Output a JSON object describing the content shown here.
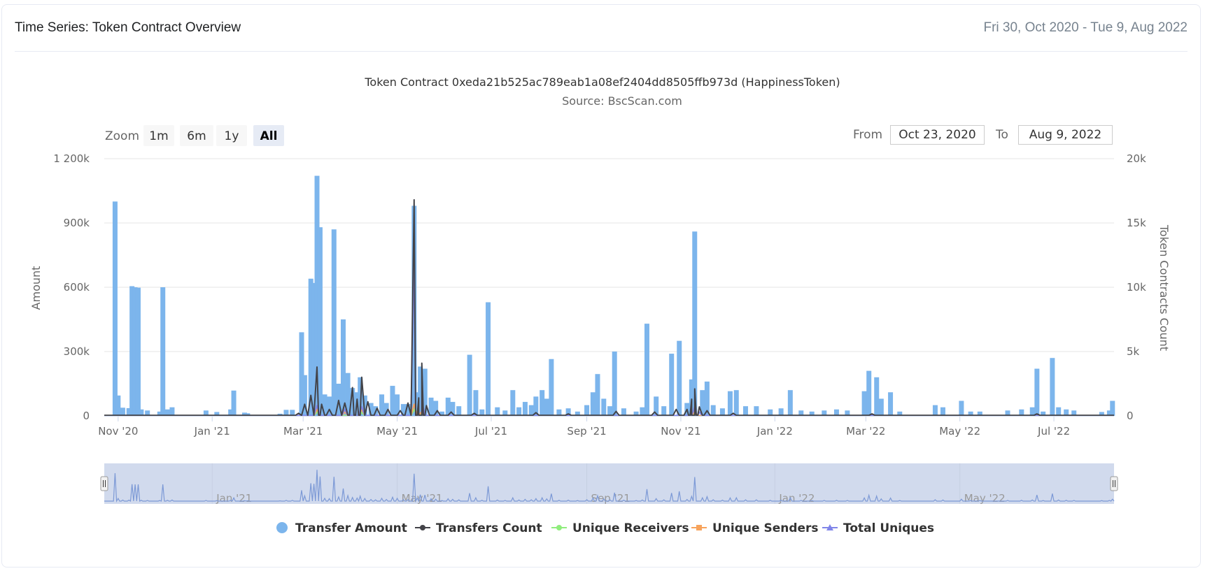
{
  "header": {
    "title": "Time Series: Token Contract Overview",
    "date_range": "Fri 30, Oct 2020 - Tue 9, Aug 2022"
  },
  "range_selector": {
    "zoom_label": "Zoom",
    "buttons": [
      "1m",
      "6m",
      "1y",
      "All"
    ],
    "active": "All",
    "from_label": "From",
    "from_value": "Oct 23, 2020",
    "to_label": "To",
    "to_value": "Aug 9, 2022"
  },
  "colors": {
    "transfer_amount": "#7cb5ec",
    "transfers_count": "#434348",
    "unique_receivers": "#90ed7d",
    "unique_senders": "#f7a35c",
    "total_uniques": "#8085e9",
    "navigator_mask": "#ccd6eb"
  },
  "chart_data": {
    "type": "bar",
    "title": "Token Contract 0xeda21b525ac789eab1a08ef2404dd8505ffb973d (HappinessToken)",
    "subtitle": "Source: BscScan.com",
    "x_range": [
      "2020-10-23",
      "2022-08-09"
    ],
    "x_ticks": [
      "Nov '20",
      "Jan '21",
      "Mar '21",
      "May '21",
      "Jul '21",
      "Sep '21",
      "Nov '21",
      "Jan '22",
      "Mar '22",
      "May '22",
      "Jul '22"
    ],
    "navigator_ticks": [
      "Jan '21",
      "May '21",
      "Sep '21",
      "Jan '22",
      "May '22"
    ],
    "y_left": {
      "label": "Amount",
      "range": [
        0,
        1200000
      ],
      "ticks": [
        "0",
        "300k",
        "600k",
        "900k",
        "1 200k"
      ]
    },
    "y_right": {
      "label": "Token Contracts Count",
      "range": [
        0,
        20000
      ],
      "ticks": [
        "0",
        "5k",
        "10k",
        "15k",
        "20k"
      ]
    },
    "legend": [
      "Transfer Amount",
      "Transfers Count",
      "Unique Receivers",
      "Unique Senders",
      "Total Uniques"
    ],
    "series": [
      {
        "name": "Transfer Amount",
        "type": "column",
        "axis": "left",
        "points": [
          [
            "2020-10-30",
            1000000
          ],
          [
            "2020-11-01",
            95000
          ],
          [
            "2020-11-04",
            38000
          ],
          [
            "2020-11-08",
            36000
          ],
          [
            "2020-11-10",
            605000
          ],
          [
            "2020-11-12",
            600000
          ],
          [
            "2020-11-14",
            598000
          ],
          [
            "2020-11-16",
            30000
          ],
          [
            "2020-11-20",
            25000
          ],
          [
            "2020-11-28",
            20000
          ],
          [
            "2020-11-30",
            600000
          ],
          [
            "2020-12-03",
            30000
          ],
          [
            "2020-12-06",
            40000
          ],
          [
            "2020-12-28",
            25000
          ],
          [
            "2021-01-04",
            18000
          ],
          [
            "2021-01-13",
            30000
          ],
          [
            "2021-01-15",
            118000
          ],
          [
            "2021-01-22",
            15000
          ],
          [
            "2021-01-24",
            12000
          ],
          [
            "2021-02-14",
            10000
          ],
          [
            "2021-02-18",
            28000
          ],
          [
            "2021-02-22",
            28000
          ],
          [
            "2021-02-28",
            390000
          ],
          [
            "2021-03-02",
            190000
          ],
          [
            "2021-03-06",
            640000
          ],
          [
            "2021-03-08",
            620000
          ],
          [
            "2021-03-10",
            1120000
          ],
          [
            "2021-03-12",
            880000
          ],
          [
            "2021-03-15",
            100000
          ],
          [
            "2021-03-18",
            90000
          ],
          [
            "2021-03-21",
            870000
          ],
          [
            "2021-03-24",
            150000
          ],
          [
            "2021-03-27",
            450000
          ],
          [
            "2021-03-30",
            200000
          ],
          [
            "2021-04-02",
            130000
          ],
          [
            "2021-04-05",
            110000
          ],
          [
            "2021-04-07",
            180000
          ],
          [
            "2021-04-10",
            95000
          ],
          [
            "2021-04-14",
            60000
          ],
          [
            "2021-04-17",
            45000
          ],
          [
            "2021-04-21",
            100000
          ],
          [
            "2021-04-24",
            60000
          ],
          [
            "2021-04-28",
            140000
          ],
          [
            "2021-05-01",
            100000
          ],
          [
            "2021-05-05",
            55000
          ],
          [
            "2021-05-08",
            55000
          ],
          [
            "2021-05-12",
            980000
          ],
          [
            "2021-05-14",
            110000
          ],
          [
            "2021-05-16",
            230000
          ],
          [
            "2021-05-19",
            220000
          ],
          [
            "2021-05-23",
            85000
          ],
          [
            "2021-05-26",
            70000
          ],
          [
            "2021-05-30",
            20000
          ],
          [
            "2021-06-03",
            85000
          ],
          [
            "2021-06-06",
            65000
          ],
          [
            "2021-06-10",
            45000
          ],
          [
            "2021-06-17",
            285000
          ],
          [
            "2021-06-21",
            120000
          ],
          [
            "2021-06-25",
            30000
          ],
          [
            "2021-06-29",
            530000
          ],
          [
            "2021-07-05",
            40000
          ],
          [
            "2021-07-10",
            25000
          ],
          [
            "2021-07-15",
            120000
          ],
          [
            "2021-07-19",
            40000
          ],
          [
            "2021-07-23",
            65000
          ],
          [
            "2021-07-27",
            50000
          ],
          [
            "2021-07-30",
            90000
          ],
          [
            "2021-08-03",
            120000
          ],
          [
            "2021-08-06",
            80000
          ],
          [
            "2021-08-09",
            265000
          ],
          [
            "2021-08-14",
            30000
          ],
          [
            "2021-08-20",
            35000
          ],
          [
            "2021-08-26",
            20000
          ],
          [
            "2021-09-01",
            50000
          ],
          [
            "2021-09-05",
            110000
          ],
          [
            "2021-09-08",
            195000
          ],
          [
            "2021-09-12",
            80000
          ],
          [
            "2021-09-16",
            45000
          ],
          [
            "2021-09-19",
            300000
          ],
          [
            "2021-09-25",
            35000
          ],
          [
            "2021-10-03",
            20000
          ],
          [
            "2021-10-07",
            40000
          ],
          [
            "2021-10-10",
            430000
          ],
          [
            "2021-10-16",
            90000
          ],
          [
            "2021-10-21",
            45000
          ],
          [
            "2021-10-26",
            290000
          ],
          [
            "2021-10-31",
            350000
          ],
          [
            "2021-11-05",
            60000
          ],
          [
            "2021-11-08",
            170000
          ],
          [
            "2021-11-10",
            860000
          ],
          [
            "2021-11-15",
            120000
          ],
          [
            "2021-11-18",
            160000
          ],
          [
            "2021-11-22",
            50000
          ],
          [
            "2021-11-28",
            35000
          ],
          [
            "2021-12-03",
            115000
          ],
          [
            "2021-12-07",
            120000
          ],
          [
            "2021-12-13",
            45000
          ],
          [
            "2021-12-20",
            45000
          ],
          [
            "2021-12-29",
            30000
          ],
          [
            "2022-01-05",
            35000
          ],
          [
            "2022-01-11",
            120000
          ],
          [
            "2022-01-18",
            25000
          ],
          [
            "2022-01-25",
            20000
          ],
          [
            "2022-02-02",
            25000
          ],
          [
            "2022-02-10",
            30000
          ],
          [
            "2022-02-17",
            25000
          ],
          [
            "2022-02-28",
            115000
          ],
          [
            "2022-03-03",
            210000
          ],
          [
            "2022-03-08",
            180000
          ],
          [
            "2022-03-11",
            80000
          ],
          [
            "2022-03-17",
            110000
          ],
          [
            "2022-03-23",
            20000
          ],
          [
            "2022-04-15",
            50000
          ],
          [
            "2022-04-20",
            40000
          ],
          [
            "2022-05-02",
            70000
          ],
          [
            "2022-05-08",
            20000
          ],
          [
            "2022-05-14",
            20000
          ],
          [
            "2022-06-01",
            25000
          ],
          [
            "2022-06-10",
            30000
          ],
          [
            "2022-06-17",
            40000
          ],
          [
            "2022-06-20",
            220000
          ],
          [
            "2022-06-24",
            20000
          ],
          [
            "2022-06-30",
            270000
          ],
          [
            "2022-07-04",
            40000
          ],
          [
            "2022-07-09",
            30000
          ],
          [
            "2022-07-14",
            25000
          ],
          [
            "2022-08-01",
            18000
          ],
          [
            "2022-08-06",
            25000
          ],
          [
            "2022-08-08",
            70000
          ]
        ]
      },
      {
        "name": "Transfers Count",
        "type": "line",
        "axis": "right",
        "baseline": 40,
        "points": [
          [
            "2021-02-26",
            200
          ],
          [
            "2021-03-02",
            900
          ],
          [
            "2021-03-06",
            1600
          ],
          [
            "2021-03-10",
            3800
          ],
          [
            "2021-03-13",
            900
          ],
          [
            "2021-03-18",
            500
          ],
          [
            "2021-03-24",
            1200
          ],
          [
            "2021-03-28",
            1000
          ],
          [
            "2021-04-02",
            2200
          ],
          [
            "2021-04-05",
            1300
          ],
          [
            "2021-04-08",
            3000
          ],
          [
            "2021-04-12",
            1100
          ],
          [
            "2021-04-18",
            600
          ],
          [
            "2021-04-25",
            500
          ],
          [
            "2021-05-03",
            400
          ],
          [
            "2021-05-08",
            1000
          ],
          [
            "2021-05-12",
            16800
          ],
          [
            "2021-05-15",
            1400
          ],
          [
            "2021-05-17",
            4100
          ],
          [
            "2021-05-20",
            800
          ],
          [
            "2021-05-27",
            400
          ],
          [
            "2021-06-05",
            300
          ],
          [
            "2021-06-20",
            200
          ],
          [
            "2021-07-30",
            250
          ],
          [
            "2021-08-20",
            150
          ],
          [
            "2021-09-20",
            350
          ],
          [
            "2021-10-15",
            300
          ],
          [
            "2021-10-29",
            500
          ],
          [
            "2021-11-05",
            500
          ],
          [
            "2021-11-08",
            1300
          ],
          [
            "2021-11-10",
            2100
          ],
          [
            "2021-11-13",
            700
          ],
          [
            "2021-11-18",
            400
          ],
          [
            "2021-12-05",
            200
          ],
          [
            "2022-03-05",
            150
          ],
          [
            "2022-06-20",
            150
          ]
        ]
      },
      {
        "name": "Unique Receivers",
        "type": "line",
        "axis": "right",
        "baseline": 15,
        "points": [
          [
            "2021-03-10",
            300
          ],
          [
            "2021-04-08",
            250
          ],
          [
            "2021-05-12",
            500
          ],
          [
            "2021-05-17",
            200
          ],
          [
            "2021-11-10",
            150
          ]
        ]
      },
      {
        "name": "Unique Senders",
        "type": "line",
        "axis": "right",
        "baseline": 20,
        "points": [
          [
            "2021-03-10",
            500
          ],
          [
            "2021-03-28",
            300
          ],
          [
            "2021-04-08",
            500
          ],
          [
            "2021-05-12",
            900
          ],
          [
            "2021-05-17",
            350
          ],
          [
            "2021-11-10",
            300
          ]
        ]
      },
      {
        "name": "Total Uniques",
        "type": "line",
        "axis": "right",
        "baseline": 25,
        "points": [
          [
            "2021-03-10",
            800
          ],
          [
            "2021-03-28",
            500
          ],
          [
            "2021-04-08",
            700
          ],
          [
            "2021-05-12",
            12800
          ],
          [
            "2021-05-15",
            800
          ],
          [
            "2021-05-17",
            1200
          ],
          [
            "2021-11-10",
            700
          ],
          [
            "2021-11-13",
            300
          ]
        ]
      }
    ]
  }
}
